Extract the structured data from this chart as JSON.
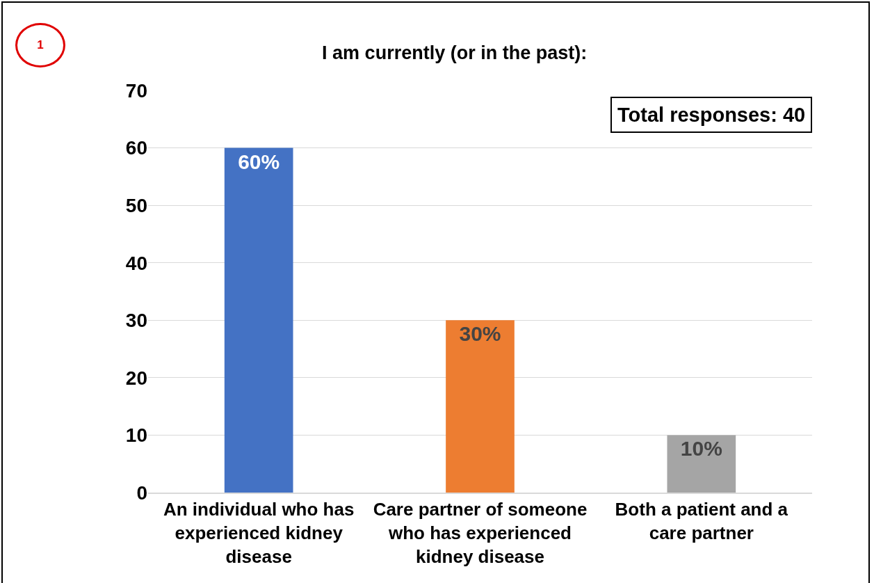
{
  "chart_data": {
    "type": "bar",
    "title": "I am currently (or in the past):",
    "categories": [
      "An individual who has experienced kidney disease",
      "Care partner of someone who has experienced kidney disease",
      "Both a patient and a care partner"
    ],
    "values": [
      60,
      30,
      10
    ],
    "colors": [
      "#4472c4",
      "#ed7d31",
      "#a5a5a5"
    ],
    "value_labels": [
      "60%",
      "30%",
      "10%"
    ],
    "ylim": [
      0,
      70
    ],
    "yticks": [
      0,
      10,
      20,
      30,
      40,
      50,
      60,
      70
    ],
    "grid": "y",
    "legend": false,
    "annotations": [
      "1",
      "Total responses: 40"
    ]
  }
}
